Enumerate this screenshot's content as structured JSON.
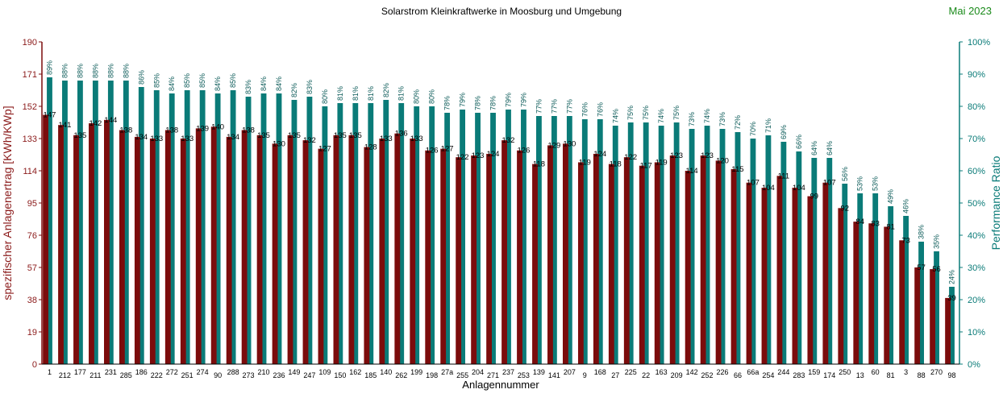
{
  "chart_data": {
    "type": "bar",
    "title": "Solarstrom Kleinkraftwerke in Moosburg und Umgebung",
    "subtitle": "Mai 2023",
    "xlabel": "Anlagennummer",
    "ylabel": "spezifischer Anlagenertrag  [KWh/KWp]",
    "y2label": "Performance Ratio",
    "ylim": [
      0,
      190
    ],
    "y2lim": [
      0,
      100
    ],
    "yticks": [
      0,
      19,
      38,
      57,
      76,
      95,
      114,
      133,
      152,
      171,
      190
    ],
    "y2ticks": [
      "0%",
      "10%",
      "20%",
      "30%",
      "40%",
      "50%",
      "60%",
      "70%",
      "80%",
      "90%",
      "100%"
    ],
    "grid": false,
    "colors": {
      "yield": "#7b0c0c",
      "ratio": "#0a7b78",
      "ylabel": "#8b1a1a",
      "y2label": "#0a7b78",
      "subtitle": "#1a8a1a"
    },
    "categories": [
      "1",
      "212",
      "177",
      "211",
      "231",
      "285",
      "186",
      "222",
      "272",
      "251",
      "274",
      "90",
      "288",
      "273",
      "210",
      "236",
      "149",
      "247",
      "109",
      "150",
      "162",
      "185",
      "140",
      "262",
      "199",
      "198",
      "27a",
      "255",
      "204",
      "271",
      "237",
      "253",
      "139",
      "141",
      "207",
      "9",
      "168",
      "27",
      "225",
      "22",
      "163",
      "209",
      "142",
      "252",
      "226",
      "66",
      "66a",
      "254",
      "244",
      "283",
      "159",
      "174",
      "250",
      "13",
      "60",
      "81",
      "3",
      "88",
      "270",
      "98"
    ],
    "series": [
      {
        "values": [
          147,
          141,
          135,
          142,
          144,
          138,
          134,
          133,
          138,
          133,
          139,
          140,
          134,
          138,
          135,
          130,
          135,
          132,
          127,
          135,
          135,
          128,
          133,
          136,
          133,
          126,
          127,
          122,
          123,
          124,
          132,
          126,
          118,
          129,
          130,
          119,
          124,
          118,
          122,
          117,
          119,
          123,
          114,
          123,
          120,
          115,
          107,
          104,
          111,
          104,
          99,
          107,
          92,
          84,
          83,
          81,
          73,
          57,
          56,
          39
        ]
      },
      {
        "values": [
          89,
          88,
          88,
          88,
          88,
          88,
          86,
          85,
          84,
          85,
          85,
          84,
          85,
          83,
          84,
          84,
          82,
          83,
          80,
          81,
          81,
          81,
          82,
          81,
          80,
          80,
          78,
          79,
          78,
          78,
          79,
          79,
          77,
          77,
          77,
          76,
          76,
          74,
          75,
          75,
          74,
          75,
          73,
          74,
          73,
          72,
          70,
          71,
          69,
          66,
          64,
          64,
          56,
          53,
          53,
          49,
          46,
          38,
          35,
          24
        ]
      }
    ]
  }
}
